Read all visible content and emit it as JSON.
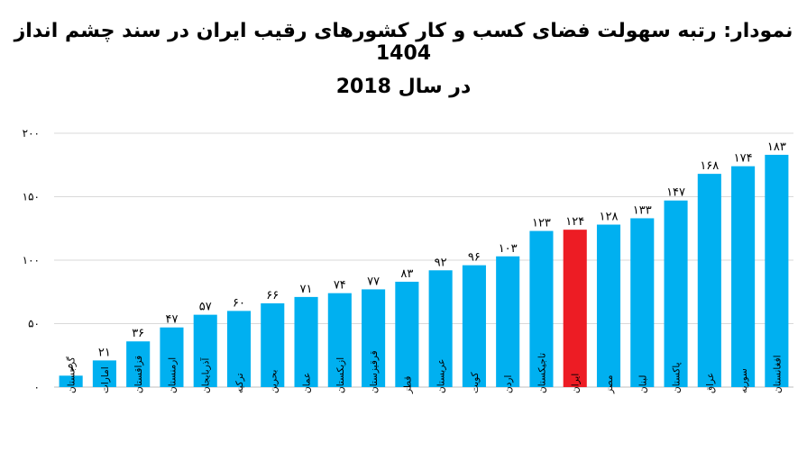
{
  "title_line1": "نمودار: رتبه سهولت فضای کسب و کار کشورهای رقیب ایران در سند چشم انداز 1404",
  "title_line2": "در سال 2018",
  "colors": {
    "bar": "#00b0f0",
    "highlight": "#ed1c24",
    "grid": "#d9d9d9"
  },
  "chart_data": {
    "type": "bar",
    "title": "نمودار: رتبه سهولت فضای کسب و کار کشورهای رقیب ایران در سند چشم انداز 1404 در سال 2018",
    "categories": [
      "گرجستان",
      "امارات",
      "قزاقستان",
      "ارمنستان",
      "آذربایجان",
      "ترکیه",
      "بحرین",
      "عمان",
      "ازبکستان",
      "قرقیزستان",
      "قطر",
      "عربستان",
      "کویت",
      "اردن",
      "تاجیکستان",
      "ایران",
      "مصر",
      "لبنان",
      "پاکستان",
      "عراق",
      "سوریه",
      "افغانستان"
    ],
    "values": [
      9,
      21,
      36,
      47,
      57,
      60,
      66,
      71,
      74,
      77,
      83,
      92,
      96,
      103,
      123,
      124,
      128,
      133,
      147,
      168,
      174,
      183
    ],
    "value_labels": [
      "۹",
      "۲۱",
      "۳۶",
      "۴۷",
      "۵۷",
      "۶۰",
      "۶۶",
      "۷۱",
      "۷۴",
      "۷۷",
      "۸۳",
      "۹۲",
      "۹۶",
      "۱۰۳",
      "۱۲۳",
      "۱۲۴",
      "۱۲۸",
      "۱۳۳",
      "۱۴۷",
      "۱۶۸",
      "۱۷۴",
      "۱۸۳"
    ],
    "highlight": "ایران",
    "ylim": [
      0,
      200
    ],
    "yticks": [
      0,
      50,
      100,
      150,
      200
    ],
    "ytick_labels": [
      "۰",
      "۵۰",
      "۱۰۰",
      "۱۵۰",
      "۲۰۰"
    ],
    "grid": true,
    "legend": "none",
    "xlabel": "",
    "ylabel": ""
  }
}
